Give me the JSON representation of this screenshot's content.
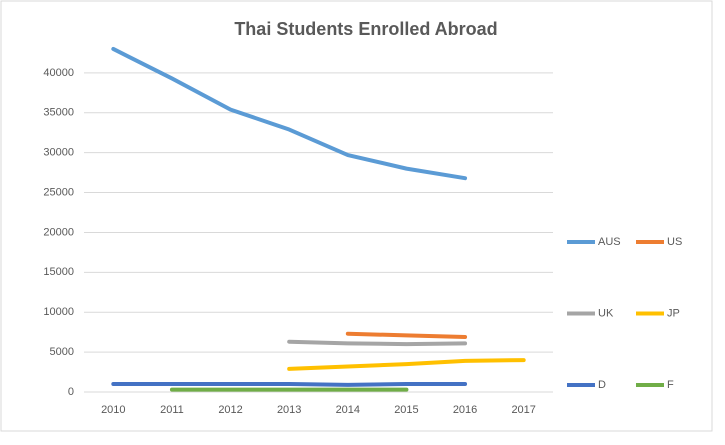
{
  "chart_data": {
    "type": "line",
    "title": "Thai Students Enrolled Abroad",
    "categories": [
      "2010",
      "2011",
      "2012",
      "2013",
      "2014",
      "2015",
      "2016",
      "2017"
    ],
    "series": [
      {
        "name": "AUS",
        "color": "#5b9bd5",
        "values": [
          43000,
          39300,
          35400,
          32900,
          29700,
          28000,
          26800,
          null
        ]
      },
      {
        "name": "US",
        "color": "#ed7d31",
        "values": [
          null,
          null,
          null,
          null,
          7300,
          7100,
          6900,
          null
        ]
      },
      {
        "name": "UK",
        "color": "#a5a5a5",
        "values": [
          null,
          null,
          null,
          6300,
          6100,
          6000,
          6100,
          null
        ]
      },
      {
        "name": "JP",
        "color": "#ffc000",
        "values": [
          null,
          null,
          null,
          2900,
          3200,
          3500,
          3900,
          4000
        ]
      },
      {
        "name": "D",
        "color": "#4472c4",
        "values": [
          1000,
          1000,
          1000,
          1000,
          900,
          1000,
          1000,
          null
        ]
      },
      {
        "name": "F",
        "color": "#70ad47",
        "values": [
          null,
          300,
          300,
          300,
          300,
          300,
          null,
          null
        ]
      }
    ],
    "ylim": [
      0,
      45000
    ],
    "yticks": [
      0,
      5000,
      10000,
      15000,
      20000,
      25000,
      30000,
      35000,
      40000
    ],
    "grid": true,
    "legend": "right"
  }
}
